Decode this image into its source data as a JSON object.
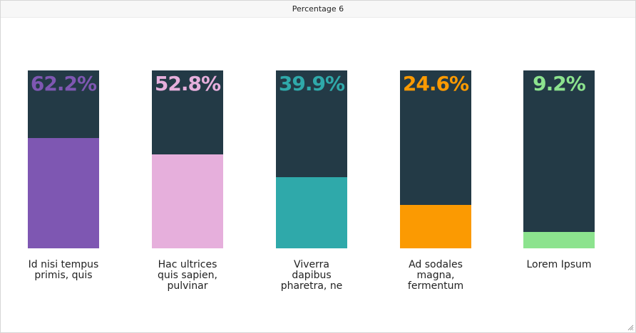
{
  "window": {
    "title": "Percentage 6"
  },
  "chart_data": {
    "type": "bar",
    "categories": [
      "Id nisi tempus primis, quis",
      "Hac ultrices quis sapien, pulvinar",
      "Viverra dapibus pharetra, ne",
      "Ad sodales magna, fermentum",
      "Lorem Ipsum"
    ],
    "values": [
      62.2,
      52.8,
      39.9,
      24.6,
      9.2
    ],
    "value_labels": [
      "62.2%",
      "52.8%",
      "39.9%",
      "24.6%",
      "9.2%"
    ],
    "colors": [
      "#7e57b2",
      "#e6afdc",
      "#2fa9aa",
      "#fb9a02",
      "#8ce38e"
    ],
    "track_color": "#233a46",
    "ylim": [
      0,
      100
    ]
  }
}
